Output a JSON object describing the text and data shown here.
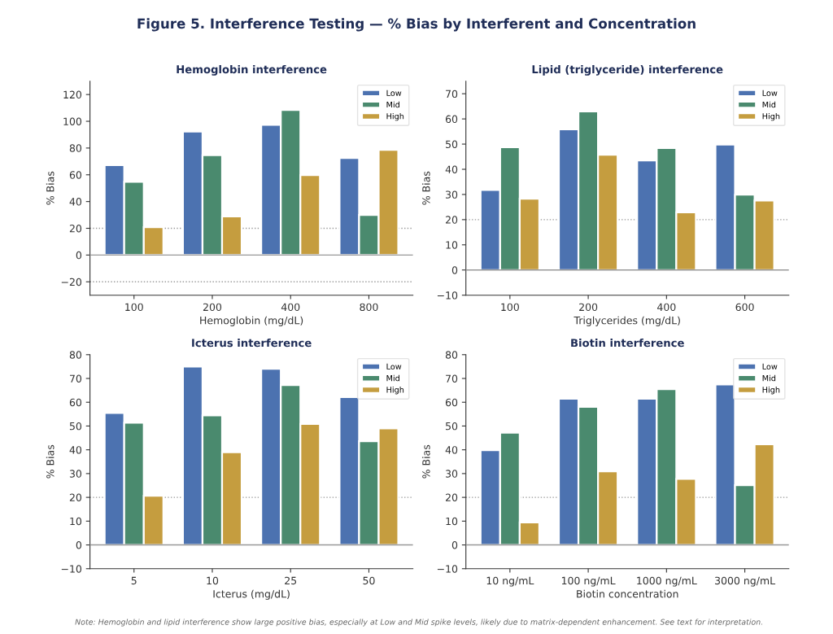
{
  "chart_data": [
    {
      "type": "other",
      "title": "Figure 5. Interference Testing — % Bias by Interferent and Concentration",
      "annotations": [
        "Note: Hemoglobin and lipid interference show large positive bias, especially at Low and Mid spike levels, likely due to matrix-dependent enhancement. See text for interpretation."
      ]
    },
    {
      "type": "bar",
      "title": "Hemoglobin interference",
      "xlabel": "Hemoglobin (mg/dL)",
      "ylabel": "% Bias",
      "categories": [
        "100",
        "200",
        "400",
        "800"
      ],
      "series": [
        {
          "name": "Low",
          "color": "#4c72b0",
          "values": [
            67.3,
            92.3,
            97.4,
            72.5
          ]
        },
        {
          "name": "Mid",
          "color": "#4a8a6e",
          "values": [
            54.7,
            74.7,
            108.5,
            29.9
          ]
        },
        {
          "name": "High",
          "color": "#c59d3f",
          "values": [
            20.8,
            28.9,
            59.8,
            78.6
          ]
        }
      ],
      "ylim": [
        -30,
        130
      ],
      "yticks": [
        -20,
        0,
        20,
        40,
        60,
        80,
        100,
        120
      ],
      "ref_lines": [
        {
          "axis": "y",
          "value": 0,
          "color": "#999999",
          "line_style": "solid"
        },
        {
          "axis": "y",
          "value": 20,
          "color": "#999999",
          "line_style": "dotted"
        },
        {
          "axis": "y",
          "value": -20,
          "color": "#999999",
          "line_style": "dotted"
        }
      ],
      "legend": "top right"
    },
    {
      "type": "bar",
      "title": "Lipid (triglyceride) interference",
      "xlabel": "Triglycerides (mg/dL)",
      "ylabel": "% Bias",
      "categories": [
        "100",
        "200",
        "400",
        "600"
      ],
      "series": [
        {
          "name": "Low",
          "color": "#4c72b0",
          "values": [
            31.8,
            55.9,
            43.5,
            49.8
          ]
        },
        {
          "name": "Mid",
          "color": "#4a8a6e",
          "values": [
            48.8,
            63.0,
            48.4,
            29.9
          ]
        },
        {
          "name": "High",
          "color": "#c59d3f",
          "values": [
            28.3,
            45.8,
            22.9,
            27.6
          ]
        }
      ],
      "ylim": [
        -10,
        75
      ],
      "yticks": [
        -10,
        0,
        10,
        20,
        30,
        40,
        50,
        60,
        70
      ],
      "ref_lines": [
        {
          "axis": "y",
          "value": 0,
          "color": "#999999",
          "line_style": "solid"
        },
        {
          "axis": "y",
          "value": 20,
          "color": "#999999",
          "line_style": "dotted"
        }
      ],
      "legend": "top right"
    },
    {
      "type": "bar",
      "title": "Icterus interference",
      "xlabel": "Icterus (mg/dL)",
      "ylabel": "% Bias",
      "categories": [
        "5",
        "10",
        "25",
        "50"
      ],
      "series": [
        {
          "name": "Low",
          "color": "#4c72b0",
          "values": [
            55.5,
            75.0,
            74.1,
            62.2
          ]
        },
        {
          "name": "Mid",
          "color": "#4a8a6e",
          "values": [
            51.4,
            54.5,
            67.2,
            43.6
          ]
        },
        {
          "name": "High",
          "color": "#c59d3f",
          "values": [
            20.7,
            39.0,
            50.9,
            49.0
          ]
        }
      ],
      "ylim": [
        -10,
        80
      ],
      "yticks": [
        -10,
        0,
        10,
        20,
        30,
        40,
        50,
        60,
        70,
        80
      ],
      "ref_lines": [
        {
          "axis": "y",
          "value": 0,
          "color": "#999999",
          "line_style": "solid"
        },
        {
          "axis": "y",
          "value": 20,
          "color": "#999999",
          "line_style": "dotted"
        }
      ],
      "legend": "top right"
    },
    {
      "type": "bar",
      "title": "Biotin interference",
      "xlabel": "Biotin concentration",
      "ylabel": "% Bias",
      "categories": [
        "10 ng/mL",
        "100 ng/mL",
        "1000 ng/mL",
        "3000 ng/mL"
      ],
      "series": [
        {
          "name": "Low",
          "color": "#4c72b0",
          "values": [
            39.8,
            61.5,
            61.5,
            67.5
          ]
        },
        {
          "name": "Mid",
          "color": "#4a8a6e",
          "values": [
            47.2,
            58.1,
            65.5,
            25.1
          ]
        },
        {
          "name": "High",
          "color": "#c59d3f",
          "values": [
            9.5,
            30.9,
            27.8,
            42.3
          ]
        }
      ],
      "ylim": [
        -10,
        80
      ],
      "yticks": [
        -10,
        0,
        10,
        20,
        30,
        40,
        50,
        60,
        70,
        80
      ],
      "ref_lines": [
        {
          "axis": "y",
          "value": 0,
          "color": "#999999",
          "line_style": "solid"
        },
        {
          "axis": "y",
          "value": 20,
          "color": "#999999",
          "line_style": "dotted"
        }
      ],
      "legend": "top right"
    }
  ]
}
